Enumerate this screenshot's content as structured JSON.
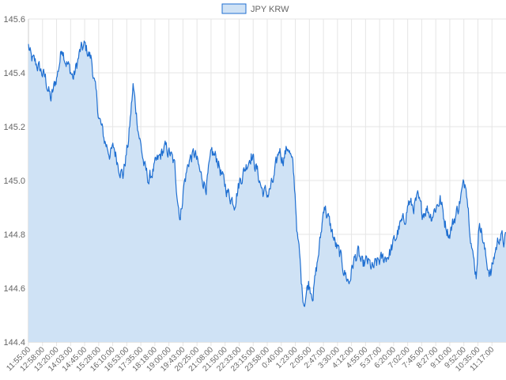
{
  "chart_data": {
    "type": "area",
    "series": [
      {
        "name": "JPY KRW",
        "color": "#1f6fd1",
        "fill": "#cfe2f5",
        "anchors": [
          [
            0,
            145.5
          ],
          [
            5,
            145.45
          ],
          [
            15,
            145.43
          ],
          [
            30,
            145.38
          ],
          [
            40,
            145.3
          ],
          [
            52,
            145.4
          ],
          [
            60,
            145.5
          ],
          [
            66,
            145.45
          ],
          [
            80,
            145.38
          ],
          [
            92,
            145.48
          ],
          [
            100,
            145.5
          ],
          [
            112,
            145.45
          ],
          [
            118,
            145.35
          ],
          [
            125,
            145.24
          ],
          [
            135,
            145.15
          ],
          [
            145,
            145.1
          ],
          [
            152,
            145.12
          ],
          [
            160,
            145.06
          ],
          [
            168,
            145.02
          ],
          [
            178,
            145.15
          ],
          [
            186,
            145.35
          ],
          [
            196,
            145.18
          ],
          [
            206,
            145.05
          ],
          [
            214,
            145.0
          ],
          [
            222,
            145.04
          ],
          [
            232,
            145.08
          ],
          [
            242,
            145.12
          ],
          [
            252,
            145.1
          ],
          [
            260,
            145.05
          ],
          [
            266,
            144.92
          ],
          [
            270,
            144.86
          ],
          [
            276,
            144.98
          ],
          [
            286,
            145.08
          ],
          [
            296,
            145.1
          ],
          [
            306,
            145.02
          ],
          [
            316,
            144.98
          ],
          [
            326,
            145.1
          ],
          [
            336,
            145.08
          ],
          [
            346,
            145.0
          ],
          [
            356,
            144.95
          ],
          [
            366,
            144.92
          ],
          [
            376,
            145.0
          ],
          [
            386,
            145.05
          ],
          [
            396,
            145.1
          ],
          [
            406,
            145.04
          ],
          [
            416,
            144.96
          ],
          [
            426,
            144.95
          ],
          [
            436,
            145.0
          ],
          [
            446,
            145.12
          ],
          [
            452,
            145.08
          ],
          [
            462,
            145.13
          ],
          [
            470,
            145.05
          ],
          [
            474,
            144.95
          ],
          [
            478,
            144.8
          ],
          [
            482,
            144.72
          ],
          [
            486,
            144.6
          ],
          [
            490,
            144.55
          ],
          [
            498,
            144.62
          ],
          [
            506,
            144.58
          ],
          [
            514,
            144.7
          ],
          [
            520,
            144.8
          ],
          [
            526,
            144.92
          ],
          [
            530,
            144.88
          ],
          [
            538,
            144.82
          ],
          [
            546,
            144.76
          ],
          [
            554,
            144.72
          ],
          [
            562,
            144.66
          ],
          [
            570,
            144.62
          ],
          [
            578,
            144.7
          ],
          [
            586,
            144.73
          ],
          [
            594,
            144.68
          ],
          [
            602,
            144.7
          ],
          [
            612,
            144.67
          ],
          [
            622,
            144.7
          ],
          [
            632,
            144.71
          ],
          [
            642,
            144.73
          ],
          [
            652,
            144.78
          ],
          [
            660,
            144.83
          ],
          [
            668,
            144.85
          ],
          [
            676,
            144.92
          ],
          [
            684,
            144.9
          ],
          [
            692,
            144.93
          ],
          [
            700,
            144.88
          ],
          [
            708,
            144.9
          ],
          [
            716,
            144.87
          ],
          [
            724,
            144.9
          ],
          [
            732,
            144.93
          ],
          [
            740,
            144.85
          ],
          [
            748,
            144.8
          ],
          [
            756,
            144.85
          ],
          [
            764,
            144.9
          ],
          [
            772,
            144.97
          ],
          [
            778,
            145.0
          ],
          [
            784,
            144.85
          ],
          [
            790,
            144.72
          ],
          [
            796,
            144.65
          ],
          [
            802,
            144.86
          ],
          [
            808,
            144.78
          ],
          [
            814,
            144.7
          ],
          [
            822,
            144.65
          ],
          [
            830,
            144.74
          ],
          [
            838,
            144.8
          ],
          [
            846,
            144.77
          ],
          [
            850,
            144.79
          ]
        ]
      }
    ],
    "x_tick_labels": [
      "11:55:00",
      "12:58:00",
      "13:20:00",
      "14:03:00",
      "14:45:00",
      "15:28:00",
      "16:10:00",
      "16:53:00",
      "17:35:00",
      "18:18:00",
      "19:00:00",
      "19:43:00",
      "20:25:00",
      "21:08:00",
      "21:50:00",
      "22:33:00",
      "23:15:00",
      "23:58:00",
      "0:40:00",
      "1:23:00",
      "2:05:00",
      "2:47:00",
      "3:30:00",
      "4:12:00",
      "4:55:00",
      "5:37:00",
      "6:20:00",
      "7:02:00",
      "7:45:00",
      "8:27:00",
      "9:10:00",
      "9:52:00",
      "10:35:00",
      "11:17:00"
    ],
    "y_ticks": [
      144.4,
      144.6,
      144.8,
      145.0,
      145.2,
      145.4,
      145.6
    ],
    "ylim": [
      144.4,
      145.6
    ],
    "x_count": 850,
    "grid": true,
    "legend_position": "top-center",
    "title": "",
    "xlabel": "",
    "ylabel": ""
  }
}
